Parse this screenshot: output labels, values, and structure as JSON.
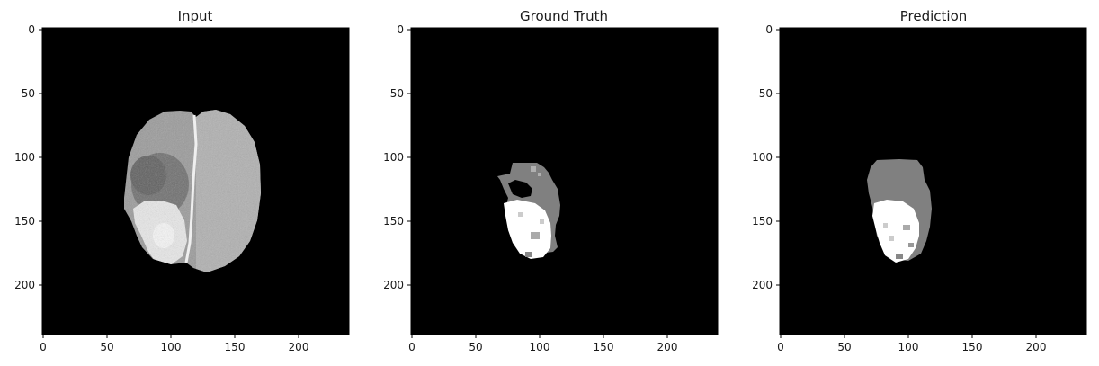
{
  "figure": {
    "panels": [
      {
        "title": "Input",
        "xticks": [
          "0",
          "50",
          "100",
          "150",
          "200"
        ],
        "yticks": [
          "0",
          "50",
          "100",
          "150",
          "200"
        ]
      },
      {
        "title": "Ground Truth",
        "xticks": [
          "0",
          "50",
          "100",
          "150",
          "200"
        ],
        "yticks": [
          "0",
          "50",
          "100",
          "150",
          "200"
        ]
      },
      {
        "title": "Prediction",
        "xticks": [
          "0",
          "50",
          "100",
          "150",
          "200"
        ],
        "yticks": [
          "0",
          "50",
          "100",
          "150",
          "200"
        ]
      }
    ]
  },
  "colors": {
    "background": "#000000",
    "tumor_core": "#ffffff",
    "edema": "#808080"
  }
}
